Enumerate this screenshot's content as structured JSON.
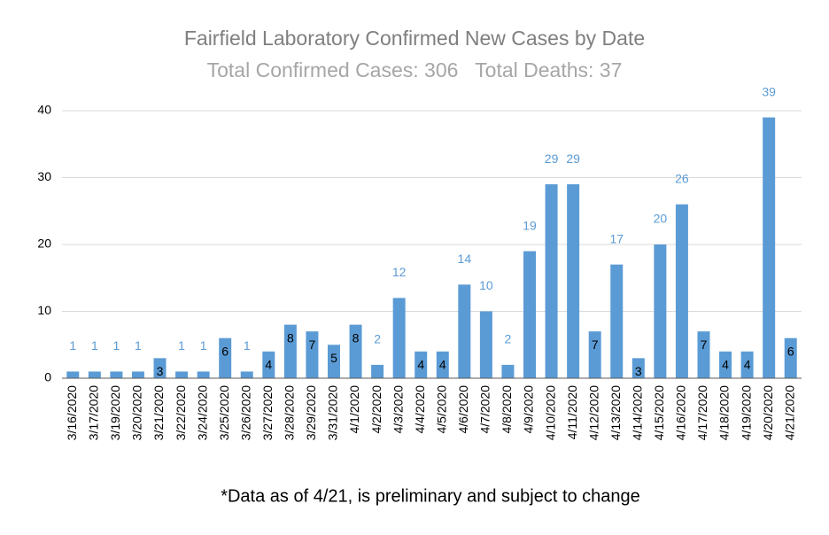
{
  "chart_data": {
    "type": "bar",
    "title": "Fairfield Laboratory Confirmed New Cases by Date",
    "subtitle": "Total Confirmed Cases: 306   Total Deaths: 37",
    "footnote": "*Data as of 4/21, is preliminary and subject to change",
    "categories": [
      "3/16/2020",
      "3/17/2020",
      "3/19/2020",
      "3/20/2020",
      "3/21/2020",
      "3/22/2020",
      "3/24/2020",
      "3/25/2020",
      "3/26/2020",
      "3/27/2020",
      "3/28/2020",
      "3/29/2020",
      "3/31/2020",
      "4/1/2020",
      "4/2/2020",
      "4/3/2020",
      "4/4/2020",
      "4/5/2020",
      "4/6/2020",
      "4/7/2020",
      "4/8/2020",
      "4/9/2020",
      "4/10/2020",
      "4/11/2020",
      "4/12/2020",
      "4/13/2020",
      "4/14/2020",
      "4/15/2020",
      "4/16/2020",
      "4/17/2020",
      "4/18/2020",
      "4/19/2020",
      "4/20/2020",
      "4/21/2020"
    ],
    "values": [
      1,
      1,
      1,
      1,
      3,
      1,
      1,
      6,
      1,
      4,
      8,
      7,
      5,
      8,
      2,
      12,
      4,
      4,
      14,
      10,
      2,
      19,
      29,
      29,
      7,
      17,
      3,
      20,
      26,
      7,
      4,
      4,
      39,
      6
    ],
    "value_label_position": [
      "above",
      "above",
      "above",
      "above",
      "inside",
      "above",
      "above",
      "inside",
      "above",
      "inside",
      "inside",
      "inside",
      "inside",
      "inside",
      "above",
      "above",
      "inside",
      "inside",
      "above",
      "above",
      "above",
      "above",
      "above",
      "above",
      "inside",
      "above",
      "inside",
      "above",
      "above",
      "inside",
      "inside",
      "inside",
      "above",
      "inside"
    ],
    "color": "#5b9bd5",
    "ylim": [
      0,
      40
    ],
    "yticks": [
      0,
      10,
      20,
      30,
      40
    ],
    "grid": true
  }
}
